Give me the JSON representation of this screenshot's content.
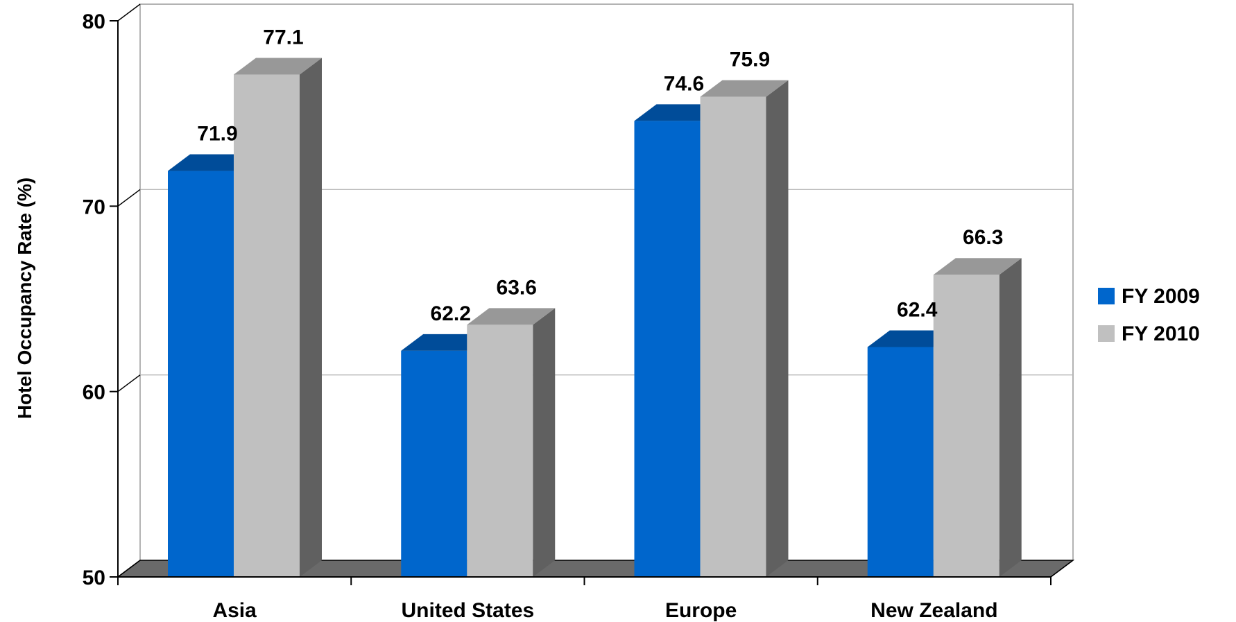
{
  "chart_data": {
    "type": "bar",
    "categories": [
      "Asia",
      "United States",
      "Europe",
      "New Zealand"
    ],
    "series": [
      {
        "name": "FY 2009",
        "values": [
          71.9,
          62.2,
          74.6,
          62.4
        ]
      },
      {
        "name": "FY 2010",
        "values": [
          77.1,
          63.6,
          75.9,
          66.3
        ]
      }
    ],
    "title": "",
    "xlabel": "",
    "ylabel": "Hotel Occupancy Rate (%)",
    "ylim": [
      50,
      80
    ],
    "yticks": [
      "50",
      "60",
      "70",
      "80"
    ],
    "grid": true,
    "legend": "right",
    "style": "3d-clustered-bar",
    "colors": {
      "FY 2009": "#0066CC",
      "FY 2010": "#C0C0C0"
    }
  }
}
